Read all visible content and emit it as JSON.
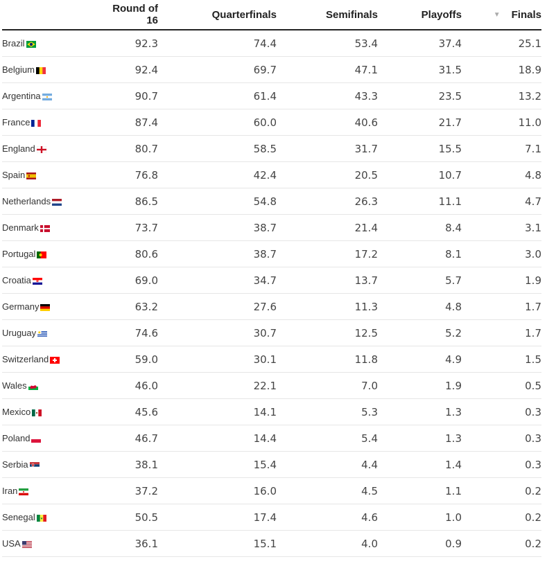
{
  "chart_data": {
    "type": "table",
    "columns": [
      "",
      "Round of 16",
      "Quarterfinals",
      "Semifinals",
      "Playoffs",
      "Finals"
    ],
    "sorted_column": "Finals",
    "rows": [
      {
        "team": "Brazil",
        "flag": "brazil-flag-icon",
        "values": [
          "92.3",
          "74.4",
          "53.4",
          "37.4",
          "25.1"
        ]
      },
      {
        "team": "Belgium",
        "flag": "belgium-flag-icon",
        "values": [
          "92.4",
          "69.7",
          "47.1",
          "31.5",
          "18.9"
        ]
      },
      {
        "team": "Argentina",
        "flag": "argentina-flag-icon",
        "values": [
          "90.7",
          "61.4",
          "43.3",
          "23.5",
          "13.2"
        ]
      },
      {
        "team": "France",
        "flag": "france-flag-icon",
        "values": [
          "87.4",
          "60.0",
          "40.6",
          "21.7",
          "11.0"
        ]
      },
      {
        "team": "England",
        "flag": "england-flag-icon",
        "values": [
          "80.7",
          "58.5",
          "31.7",
          "15.5",
          "7.1"
        ]
      },
      {
        "team": "Spain",
        "flag": "spain-flag-icon",
        "values": [
          "76.8",
          "42.4",
          "20.5",
          "10.7",
          "4.8"
        ]
      },
      {
        "team": "Netherlands",
        "flag": "netherlands-flag-icon",
        "values": [
          "86.5",
          "54.8",
          "26.3",
          "11.1",
          "4.7"
        ]
      },
      {
        "team": "Denmark",
        "flag": "denmark-flag-icon",
        "values": [
          "73.7",
          "38.7",
          "21.4",
          "8.4",
          "3.1"
        ]
      },
      {
        "team": "Portugal",
        "flag": "portugal-flag-icon",
        "values": [
          "80.6",
          "38.7",
          "17.2",
          "8.1",
          "3.0"
        ]
      },
      {
        "team": "Croatia",
        "flag": "croatia-flag-icon",
        "values": [
          "69.0",
          "34.7",
          "13.7",
          "5.7",
          "1.9"
        ]
      },
      {
        "team": "Germany",
        "flag": "germany-flag-icon",
        "values": [
          "63.2",
          "27.6",
          "11.3",
          "4.8",
          "1.7"
        ]
      },
      {
        "team": "Uruguay",
        "flag": "uruguay-flag-icon",
        "values": [
          "74.6",
          "30.7",
          "12.5",
          "5.2",
          "1.7"
        ]
      },
      {
        "team": "Switzerland",
        "flag": "switzerland-flag-icon",
        "values": [
          "59.0",
          "30.1",
          "11.8",
          "4.9",
          "1.5"
        ]
      },
      {
        "team": "Wales",
        "flag": "wales-flag-icon",
        "values": [
          "46.0",
          "22.1",
          "7.0",
          "1.9",
          "0.5"
        ]
      },
      {
        "team": "Mexico",
        "flag": "mexico-flag-icon",
        "values": [
          "45.6",
          "14.1",
          "5.3",
          "1.3",
          "0.3"
        ]
      },
      {
        "team": "Poland",
        "flag": "poland-flag-icon",
        "values": [
          "46.7",
          "14.4",
          "5.4",
          "1.3",
          "0.3"
        ]
      },
      {
        "team": "Serbia",
        "flag": "serbia-flag-icon",
        "values": [
          "38.1",
          "15.4",
          "4.4",
          "1.4",
          "0.3"
        ]
      },
      {
        "team": "Iran",
        "flag": "iran-flag-icon",
        "values": [
          "37.2",
          "16.0",
          "4.5",
          "1.1",
          "0.2"
        ]
      },
      {
        "team": "Senegal",
        "flag": "senegal-flag-icon",
        "values": [
          "50.5",
          "17.4",
          "4.6",
          "1.0",
          "0.2"
        ]
      },
      {
        "team": "USA",
        "flag": "usa-flag-icon",
        "values": [
          "36.1",
          "15.1",
          "4.0",
          "0.9",
          "0.2"
        ]
      }
    ]
  },
  "colors": {
    "header_rule": "#222222",
    "row_rule": "#e6e6e6",
    "text": "#444444",
    "sort_arrow": "#aaaaaa"
  }
}
